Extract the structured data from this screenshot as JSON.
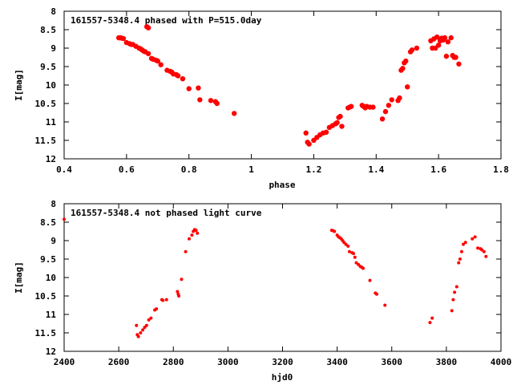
{
  "colors": {
    "points": "#ff0000",
    "axes": "#000000",
    "background": "#ffffff"
  },
  "chart_data": [
    {
      "type": "scatter",
      "title": "161557-5348.4 phased with P=515.0day",
      "xlabel": "phase",
      "ylabel": "I[mag]",
      "xlim": [
        0.4,
        1.8
      ],
      "ylim": [
        12,
        8
      ],
      "y_inverted": true,
      "xticks": [
        "0.4",
        "0.6",
        "0.8",
        "1",
        "1.2",
        "1.4",
        "1.6",
        "1.8"
      ],
      "yticks": [
        "8",
        "8.5",
        "9",
        "9.5",
        "10",
        "10.5",
        "11",
        "11.5",
        "12"
      ],
      "grid": false,
      "legend": "none",
      "marker": "filled-circle-large",
      "series": [
        {
          "x": [
            0.575,
            0.58,
            0.585,
            0.59,
            0.6,
            0.61,
            0.615,
            0.62,
            0.63,
            0.64,
            0.645,
            0.65,
            0.655,
            0.66,
            0.665,
            0.67,
            0.67,
            0.68,
            0.685,
            0.695,
            0.7,
            0.71,
            0.73,
            0.74,
            0.745,
            0.75,
            0.76,
            0.765,
            0.78,
            0.8,
            0.83,
            0.835,
            0.87,
            0.885,
            0.89,
            0.945,
            1.175,
            1.18,
            1.185,
            1.2,
            1.21,
            1.22,
            1.23,
            1.24,
            1.25,
            1.26,
            1.27,
            1.275,
            1.28,
            1.285,
            1.29,
            1.31,
            1.315,
            1.32,
            1.355,
            1.36,
            1.365,
            1.37,
            1.38,
            1.39,
            1.42,
            1.43,
            1.44,
            1.45,
            1.47,
            1.475,
            1.48,
            1.485,
            1.49,
            1.495,
            1.5,
            1.51,
            1.515,
            1.53,
            1.575,
            1.58,
            1.585,
            1.59,
            1.595,
            1.6,
            1.605,
            1.61,
            1.615,
            1.62,
            1.625,
            1.63,
            1.64,
            1.645,
            1.65,
            1.655,
            1.665
          ],
          "y": [
            8.72,
            8.72,
            8.73,
            8.74,
            8.85,
            8.88,
            8.9,
            8.9,
            8.95,
            9.0,
            9.02,
            9.05,
            9.08,
            9.1,
            8.42,
            8.45,
            9.15,
            9.28,
            9.3,
            9.33,
            9.35,
            9.45,
            9.6,
            9.63,
            9.65,
            9.7,
            9.72,
            9.75,
            9.83,
            10.1,
            10.08,
            10.4,
            10.42,
            10.45,
            10.5,
            10.77,
            11.3,
            11.55,
            11.6,
            11.5,
            11.42,
            11.35,
            11.3,
            11.28,
            11.15,
            11.1,
            11.05,
            11.02,
            10.88,
            10.85,
            11.12,
            10.62,
            10.6,
            10.58,
            10.55,
            10.58,
            10.62,
            10.58,
            10.6,
            10.6,
            10.92,
            10.72,
            10.55,
            10.4,
            10.42,
            10.35,
            9.6,
            9.55,
            9.4,
            9.35,
            10.05,
            9.1,
            9.05,
            9.0,
            8.8,
            9.0,
            8.75,
            9.0,
            8.7,
            8.92,
            8.8,
            8.73,
            8.78,
            8.72,
            9.22,
            8.83,
            8.72,
            9.2,
            9.25,
            9.25,
            9.43
          ]
        }
      ]
    },
    {
      "type": "scatter",
      "title": "161557-5348.4 not phased light curve",
      "xlabel": "hjd0",
      "ylabel": "I[mag]",
      "xlim": [
        2400,
        4000
      ],
      "ylim": [
        12,
        8
      ],
      "y_inverted": true,
      "xticks": [
        "2400",
        "2600",
        "2800",
        "3000",
        "3200",
        "3400",
        "3600",
        "3800",
        "4000"
      ],
      "yticks": [
        "8",
        "8.5",
        "9",
        "9.5",
        "10",
        "10.5",
        "11",
        "11.5",
        "12"
      ],
      "grid": false,
      "legend": "none",
      "marker": "filled-circle-small",
      "series": [
        {
          "x": [
            2400,
            2665,
            2668,
            2672,
            2680,
            2688,
            2695,
            2702,
            2710,
            2718,
            2732,
            2738,
            2758,
            2762,
            2775,
            2815,
            2818,
            2820,
            2830,
            2845,
            2858,
            2868,
            2873,
            2878,
            2883,
            2888,
            3380,
            3385,
            3390,
            3400,
            3405,
            3410,
            3415,
            3420,
            3425,
            3432,
            3440,
            3445,
            3455,
            3460,
            3465,
            3470,
            3478,
            3485,
            3490,
            3495,
            3520,
            3540,
            3545,
            3575,
            3740,
            3748,
            3820,
            3825,
            3830,
            3838,
            3845,
            3850,
            3856,
            3862,
            3870,
            3895,
            3905,
            3915,
            3925,
            3930,
            3938,
            3945
          ],
          "y": [
            8.42,
            11.3,
            11.55,
            11.6,
            11.5,
            11.42,
            11.35,
            11.3,
            11.15,
            11.1,
            10.88,
            10.85,
            10.6,
            10.62,
            10.6,
            10.38,
            10.45,
            10.5,
            10.05,
            9.3,
            8.95,
            8.85,
            8.75,
            8.7,
            8.72,
            8.8,
            8.72,
            8.73,
            8.75,
            8.85,
            8.9,
            8.92,
            8.95,
            9.0,
            9.05,
            9.1,
            9.15,
            9.3,
            9.33,
            9.35,
            9.45,
            9.6,
            9.65,
            9.7,
            9.72,
            9.75,
            10.08,
            10.42,
            10.45,
            10.75,
            11.22,
            11.1,
            10.9,
            10.6,
            10.4,
            10.25,
            9.6,
            9.5,
            9.3,
            9.1,
            9.05,
            8.95,
            8.9,
            9.2,
            9.22,
            9.25,
            9.3,
            9.43
          ]
        }
      ]
    }
  ]
}
